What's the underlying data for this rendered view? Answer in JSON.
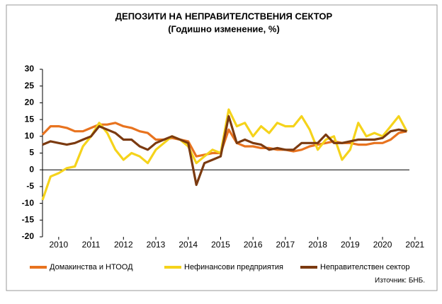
{
  "chart_data": {
    "type": "line",
    "title": "ДЕПОЗИТИ НА НЕПРАВИТЕЛСТВЕНИЯ СЕКТОР",
    "subtitle": "(Годишно изменение, %)",
    "source": "Източник: БНБ.",
    "x": [
      2010,
      2010.25,
      2010.5,
      2010.75,
      2011,
      2011.25,
      2011.5,
      2011.75,
      2012,
      2012.25,
      2012.5,
      2012.75,
      2013,
      2013.25,
      2013.5,
      2013.75,
      2014,
      2014.25,
      2014.5,
      2014.75,
      2015,
      2015.25,
      2015.5,
      2015.75,
      2016,
      2016.25,
      2016.5,
      2016.75,
      2017,
      2017.25,
      2017.5,
      2017.75,
      2018,
      2018.25,
      2018.5,
      2018.75,
      2019,
      2019.25,
      2019.5,
      2019.75,
      2020,
      2020.25,
      2020.5,
      2020.75,
      2021,
      2021.25
    ],
    "series": [
      {
        "name": "Домакинства и НТООД",
        "color": "#e8731f",
        "values": [
          10.5,
          13,
          13,
          12.5,
          11.5,
          11.5,
          12.5,
          13.5,
          13.5,
          14,
          13,
          12.5,
          11.5,
          11,
          9,
          9,
          9.5,
          9,
          8.5,
          4,
          4.5,
          5,
          5,
          12,
          8,
          7,
          7,
          6.5,
          6.5,
          6,
          6,
          5.5,
          6,
          7,
          7.5,
          8,
          8.5,
          8,
          8,
          7.5,
          7.5,
          8,
          8,
          9,
          11,
          11.5
        ]
      },
      {
        "name": "Нефинансови предприятия",
        "color": "#f5d31b",
        "values": [
          -9,
          -2,
          -1,
          0.5,
          1,
          7,
          10,
          14,
          11,
          6,
          3,
          5,
          4,
          2,
          6,
          8,
          10,
          9,
          7,
          2,
          4,
          6,
          5,
          18,
          13,
          14,
          10,
          13,
          11,
          14,
          13,
          13,
          16,
          12,
          6,
          9,
          10,
          3,
          6,
          14,
          10,
          11,
          10,
          13,
          16,
          11.5
        ]
      },
      {
        "name": "Неправителствен сектор",
        "color": "#7b3a10",
        "values": [
          7.5,
          8.5,
          8,
          7.5,
          8,
          9,
          10,
          13,
          12,
          11,
          9,
          9,
          7,
          6,
          8,
          9,
          10,
          9,
          8,
          -4.5,
          2,
          3,
          4,
          16,
          8,
          9,
          8,
          7.5,
          6,
          6.5,
          6,
          6,
          8,
          8,
          8,
          10.5,
          8,
          8,
          8.5,
          9,
          9,
          9,
          9.5,
          11.5,
          12,
          11.5
        ]
      }
    ],
    "xlim": [
      2010,
      2021.33
    ],
    "xticks": [
      {
        "value": 2010.5,
        "label": "2010"
      },
      {
        "value": 2011.5,
        "label": "2011"
      },
      {
        "value": 2012.5,
        "label": "2012"
      },
      {
        "value": 2013.5,
        "label": "2013"
      },
      {
        "value": 2014.5,
        "label": "2014"
      },
      {
        "value": 2015.5,
        "label": "2015"
      },
      {
        "value": 2016.5,
        "label": "2016"
      },
      {
        "value": 2017.5,
        "label": "2017"
      },
      {
        "value": 2018.5,
        "label": "2018"
      },
      {
        "value": 2019.5,
        "label": "2019"
      },
      {
        "value": 2020.5,
        "label": "2020"
      },
      {
        "value": 2021.5,
        "label": "2021"
      }
    ],
    "ylim": [
      -20,
      30
    ],
    "yticks": [
      -20,
      -15,
      -10,
      -5,
      0,
      5,
      10,
      15,
      20,
      25,
      30
    ],
    "legend": "bottom"
  }
}
